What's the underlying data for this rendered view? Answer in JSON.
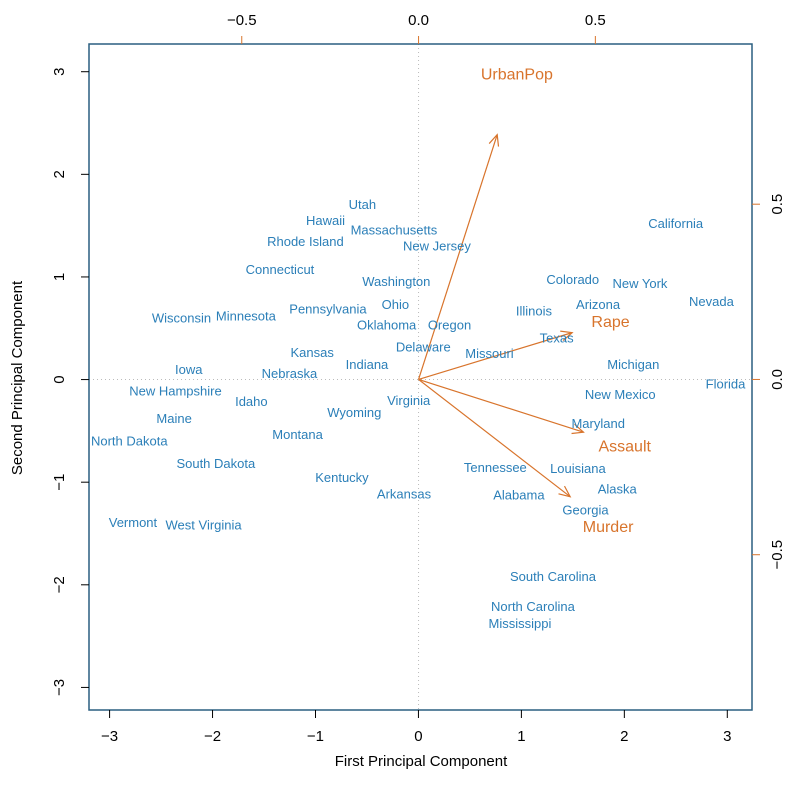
{
  "chart_data": {
    "type": "scatter",
    "subtype": "biplot",
    "title": "",
    "xlabel": "First Principal Component",
    "ylabel": "Second Principal Component",
    "xlim": [
      -3.2,
      3.24
    ],
    "ylim": [
      -3.22,
      3.27
    ],
    "xticks": [
      -3,
      -2,
      -1,
      0,
      1,
      2,
      3
    ],
    "yticks": [
      -3,
      -2,
      -1,
      0,
      1,
      2,
      3
    ],
    "loading_xlim": [
      -0.932,
      0.943
    ],
    "loading_ylim": [
      -0.943,
      0.957
    ],
    "top_ticks": [
      -0.5,
      0.0,
      0.5
    ],
    "right_ticks": [
      -0.5,
      0.0,
      0.5
    ],
    "colors": {
      "points": "#2b7fb8",
      "arrows": "#d8742c",
      "box": "#2a5f80",
      "ticks": "#000000"
    },
    "points": [
      {
        "label": "Alabama",
        "x": 0.976,
        "y": -1.122
      },
      {
        "label": "Alaska",
        "x": 1.931,
        "y": -1.062
      },
      {
        "label": "Arizona",
        "x": 1.745,
        "y": 0.738
      },
      {
        "label": "Arkansas",
        "x": -0.14,
        "y": -1.109
      },
      {
        "label": "California",
        "x": 2.499,
        "y": 1.527
      },
      {
        "label": "Colorado",
        "x": 1.499,
        "y": 0.978
      },
      {
        "label": "Connecticut",
        "x": -1.345,
        "y": 1.078
      },
      {
        "label": "Delaware",
        "x": 0.047,
        "y": 0.322
      },
      {
        "label": "Florida",
        "x": 2.983,
        "y": -0.039
      },
      {
        "label": "Georgia",
        "x": 1.623,
        "y": -1.266
      },
      {
        "label": "Hawaii",
        "x": -0.903,
        "y": 1.555
      },
      {
        "label": "Idaho",
        "x": -1.623,
        "y": -0.209
      },
      {
        "label": "Illinois",
        "x": 1.365,
        "y": 0.675
      },
      {
        "label": "Indiana",
        "x": -0.5,
        "y": 0.15
      },
      {
        "label": "Iowa",
        "x": -2.231,
        "y": 0.103
      },
      {
        "label": "Kansas",
        "x": -0.789,
        "y": 0.267
      },
      {
        "label": "Kentucky",
        "x": -0.743,
        "y": -0.949
      },
      {
        "label": "Louisiana",
        "x": 1.549,
        "y": -0.862
      },
      {
        "label": "Maine",
        "x": -2.373,
        "y": -0.373
      },
      {
        "label": "Maryland",
        "x": 1.746,
        "y": -0.423
      },
      {
        "label": "Massachusetts",
        "x": -0.481,
        "y": 1.46
      },
      {
        "label": "Michigan",
        "x": 2.087,
        "y": 0.154
      },
      {
        "label": "Minnesota",
        "x": -1.676,
        "y": 0.626
      },
      {
        "label": "Mississippi",
        "x": 0.986,
        "y": -2.37
      },
      {
        "label": "Missouri",
        "x": 0.69,
        "y": 0.261
      },
      {
        "label": "Montana",
        "x": -1.174,
        "y": -0.531
      },
      {
        "label": "Nebraska",
        "x": -1.253,
        "y": 0.192
      },
      {
        "label": "Nevada",
        "x": 2.846,
        "y": 0.768
      },
      {
        "label": "New Hampshire",
        "x": -2.36,
        "y": 0.018
      },
      {
        "label": "New Jersey",
        "x": 0.18,
        "y": 1.435
      },
      {
        "label": "New Mexico",
        "x": 1.96,
        "y": -0.141
      },
      {
        "label": "New York",
        "x": 1.666,
        "y": 0.815
      },
      {
        "label": "North Carolina",
        "x": 1.112,
        "y": -2.206
      },
      {
        "label": "North Dakota",
        "x": -2.962,
        "y": -0.593
      },
      {
        "label": "Ohio",
        "x": -0.224,
        "y": 0.735
      },
      {
        "label": "Oklahoma",
        "x": -0.309,
        "y": 0.285
      },
      {
        "label": "Oregon",
        "x": 0.059,
        "y": 0.536
      },
      {
        "label": "Pennsylvania",
        "x": -0.879,
        "y": 0.565
      },
      {
        "label": "Rhode Island",
        "x": -0.855,
        "y": 1.477
      },
      {
        "label": "South Carolina",
        "x": 1.307,
        "y": -1.914
      },
      {
        "label": "South Dakota",
        "x": -1.968,
        "y": -0.815
      },
      {
        "label": "Tennessee",
        "x": 0.99,
        "y": -0.852
      },
      {
        "label": "Texas",
        "x": 1.342,
        "y": 0.408
      },
      {
        "label": "Utah",
        "x": -0.545,
        "y": 1.457
      },
      {
        "label": "Vermont",
        "x": -2.773,
        "y": -1.388
      },
      {
        "label": "Virginia",
        "x": -0.095,
        "y": -0.198
      },
      {
        "label": "Washington",
        "x": -0.215,
        "y": 0.96
      },
      {
        "label": "West Virginia",
        "x": -2.087,
        "y": -1.411
      },
      {
        "label": "Wisconsin",
        "x": -2.059,
        "y": 0.605
      },
      {
        "label": "Wyoming",
        "x": -0.623,
        "y": -0.318
      }
    ],
    "loadings": [
      {
        "label": "Murder",
        "x": 0.536,
        "y": -0.418
      },
      {
        "label": "Assault",
        "x": 0.583,
        "y": -0.188
      },
      {
        "label": "UrbanPop",
        "x": 0.278,
        "y": 0.873
      },
      {
        "label": "Rape",
        "x": 0.543,
        "y": 0.167
      }
    ],
    "arrow_scale": 0.8
  }
}
